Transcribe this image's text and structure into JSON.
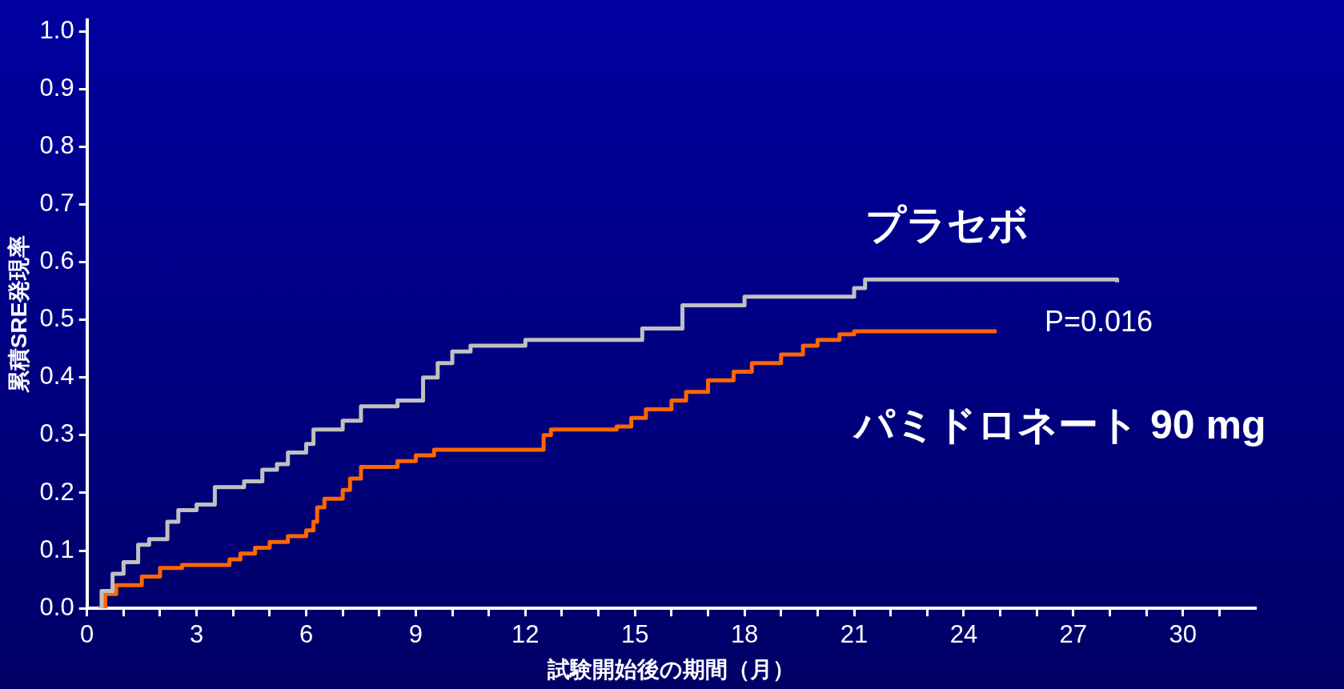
{
  "chart_data": {
    "type": "step",
    "xlabel": "試験開始後の期間（月）",
    "ylabel": "累積SRE発現率",
    "xlim": [
      0,
      32
    ],
    "ylim": [
      0,
      1.02
    ],
    "xticks": [
      0,
      {
        "value": 1,
        "label": null
      },
      {
        "value": 2,
        "label": null
      },
      3,
      {
        "value": 4,
        "label": null
      },
      {
        "value": 5,
        "label": null
      },
      6,
      {
        "value": 7,
        "label": null
      },
      {
        "value": 8,
        "label": null
      },
      9,
      {
        "value": 10,
        "label": null
      },
      {
        "value": 11,
        "label": null
      },
      12,
      {
        "value": 13,
        "label": null
      },
      {
        "value": 14,
        "label": null
      },
      15,
      {
        "value": 16,
        "label": null
      },
      {
        "value": 17,
        "label": null
      },
      18,
      {
        "value": 19,
        "label": null
      },
      {
        "value": 20,
        "label": null
      },
      21,
      {
        "value": 22,
        "label": null
      },
      {
        "value": 23,
        "label": null
      },
      24,
      {
        "value": 25,
        "label": null
      },
      {
        "value": 26,
        "label": null
      },
      27,
      {
        "value": 28,
        "label": null
      },
      {
        "value": 29,
        "label": null
      },
      30,
      {
        "value": 31,
        "label": null
      }
    ],
    "yticks": [
      {
        "value": 0,
        "label": "0.0"
      },
      0.1,
      0.2,
      0.3,
      0.4,
      0.5,
      0.6,
      0.7,
      0.8,
      0.9,
      {
        "value": 1,
        "label": "1.0"
      }
    ],
    "grid": false,
    "legend": false,
    "marker": "none",
    "line_style": "solid",
    "series": [
      {
        "name": "プラセボ",
        "color": "#c0c0c0",
        "x": [
          0.3,
          0.4,
          0.7,
          1.0,
          1.4,
          1.7,
          2.2,
          2.5,
          3.0,
          3.5,
          4.3,
          4.8,
          5.2,
          5.5,
          6.0,
          6.2,
          7.0,
          7.5,
          8.5,
          9.2,
          9.6,
          10.0,
          10.5,
          12.0,
          15.2,
          16.3,
          18.0,
          21.0,
          21.3,
          28.2
        ],
        "values": [
          0,
          0.03,
          0.06,
          0.08,
          0.11,
          0.12,
          0.15,
          0.17,
          0.18,
          0.21,
          0.22,
          0.24,
          0.25,
          0.27,
          0.285,
          0.31,
          0.325,
          0.35,
          0.36,
          0.4,
          0.425,
          0.445,
          0.455,
          0.465,
          0.485,
          0.525,
          0.54,
          0.555,
          0.57,
          0.565
        ]
      },
      {
        "name": "パミドロネート 90 mg",
        "color": "#ff6600",
        "x": [
          0.4,
          0.5,
          0.8,
          1.5,
          2.0,
          2.6,
          3.9,
          4.2,
          4.6,
          5.0,
          5.5,
          6.0,
          6.2,
          6.3,
          6.5,
          7.0,
          7.2,
          7.5,
          8.5,
          9.0,
          9.5,
          12.5,
          12.7,
          14.5,
          14.9,
          15.3,
          16.0,
          16.4,
          17.0,
          17.7,
          18.2,
          19.0,
          19.6,
          20.0,
          20.6,
          21.0,
          24.9
        ],
        "values": [
          0,
          0.025,
          0.04,
          0.055,
          0.07,
          0.075,
          0.085,
          0.095,
          0.105,
          0.115,
          0.125,
          0.135,
          0.15,
          0.175,
          0.19,
          0.205,
          0.225,
          0.245,
          0.255,
          0.265,
          0.275,
          0.3,
          0.31,
          0.315,
          0.33,
          0.345,
          0.36,
          0.375,
          0.395,
          0.41,
          0.425,
          0.44,
          0.455,
          0.465,
          0.475,
          0.48,
          0.48
        ]
      }
    ],
    "annotations": [
      "P=0.016"
    ]
  }
}
